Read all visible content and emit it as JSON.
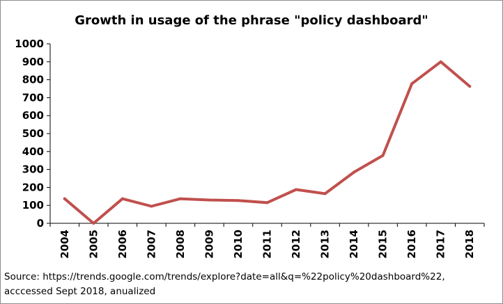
{
  "chart_data": {
    "type": "line",
    "title": "Growth in usage of the phrase \"policy dashboard\"",
    "xlabel": "",
    "ylabel": "",
    "x": [
      "2004",
      "2005",
      "2006",
      "2007",
      "2008",
      "2009",
      "2010",
      "2011",
      "2012",
      "2013",
      "2014",
      "2015",
      "2016",
      "2017",
      "2018"
    ],
    "series": [
      {
        "values": [
          137,
          0,
          137,
          95,
          137,
          130,
          127,
          115,
          188,
          165,
          285,
          378,
          778,
          900,
          763
        ]
      }
    ],
    "ylim": [
      0,
      1000
    ],
    "yticks": [
      "0",
      "100",
      "200",
      "300",
      "400",
      "500",
      "600",
      "700",
      "800",
      "900",
      "1000"
    ],
    "grid": false,
    "legend": "none",
    "line_color": "#c0504d",
    "axis_color": "#000000"
  },
  "source_note": {
    "line1": "Source: https://trends.google.com/trends/explore?date=all&q=%22policy%20dashboard%22,",
    "line2": "acccessed Sept 2018, anualized"
  }
}
